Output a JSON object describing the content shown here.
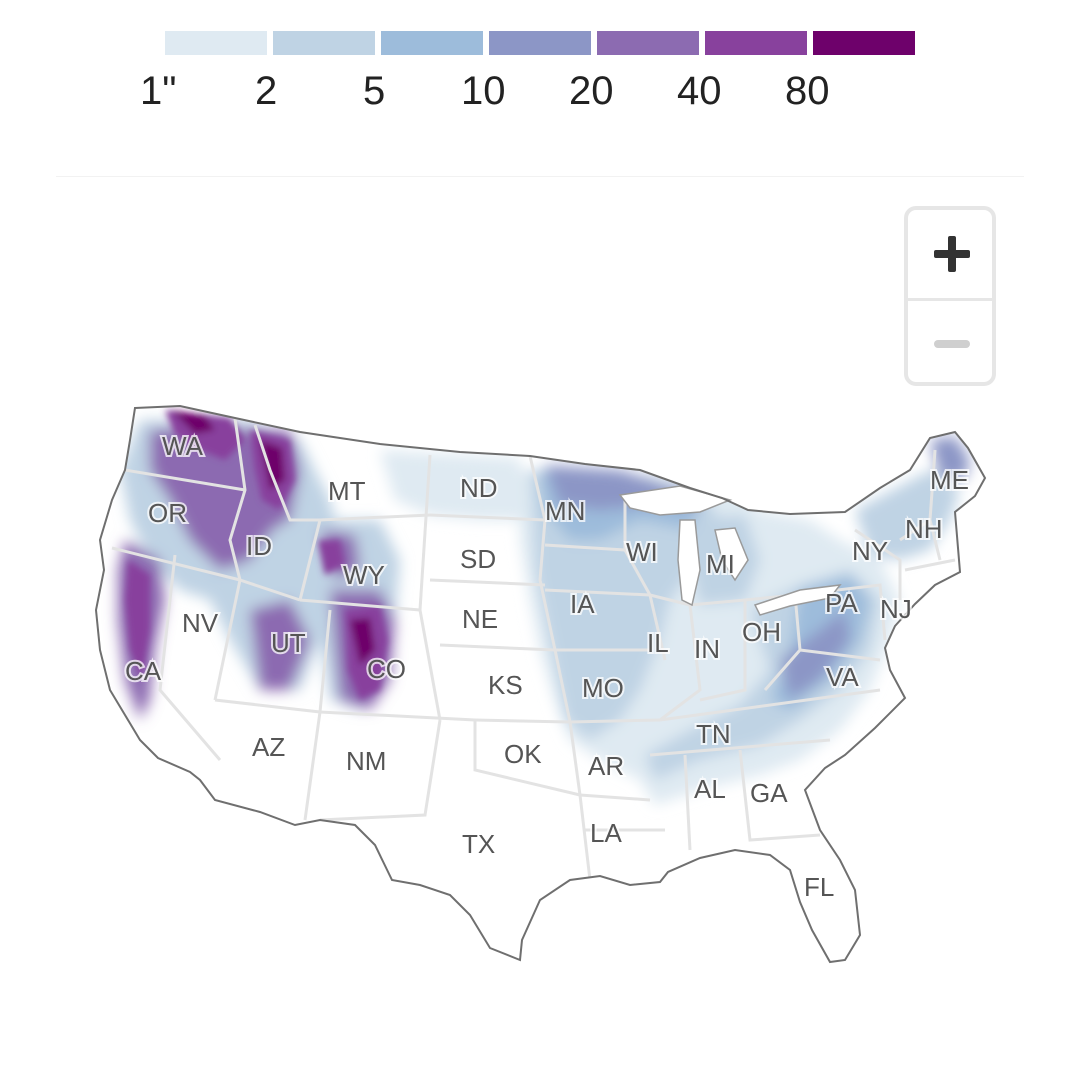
{
  "legend": {
    "bins": [
      {
        "label": "1\"",
        "color": "#dfeaf2"
      },
      {
        "label": "2",
        "color": "#bfd3e4"
      },
      {
        "label": "5",
        "color": "#9dbcdb"
      },
      {
        "label": "10",
        "color": "#8c96c6"
      },
      {
        "label": "20",
        "color": "#8c6bb1"
      },
      {
        "label": "40",
        "color": "#88419d"
      },
      {
        "label": "80",
        "color": "#6e016b"
      }
    ]
  },
  "states": [
    "WA",
    "OR",
    "CA",
    "ID",
    "NV",
    "MT",
    "WY",
    "UT",
    "AZ",
    "CO",
    "NM",
    "ND",
    "SD",
    "NE",
    "KS",
    "OK",
    "TX",
    "MN",
    "IA",
    "MO",
    "AR",
    "LA",
    "WI",
    "IL",
    "IN",
    "MI",
    "OH",
    "TN",
    "AL",
    "GA",
    "FL",
    "VA",
    "PA",
    "NY",
    "NJ",
    "NH",
    "ME"
  ],
  "zoom": {
    "in_icon": "plus-icon",
    "out_icon": "minus-icon"
  }
}
